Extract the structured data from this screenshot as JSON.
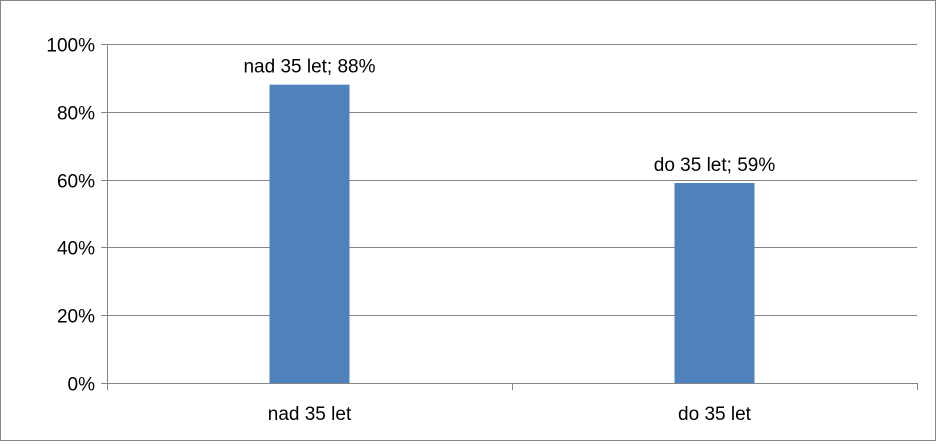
{
  "chart_data": {
    "type": "bar",
    "categories": [
      "nad 35 let",
      "do 35 let"
    ],
    "values": [
      88,
      59
    ],
    "data_labels": [
      "nad 35 let; 88%",
      "do 35 let; 59%"
    ],
    "ylim": [
      0,
      100
    ],
    "yticks": [
      0,
      20,
      40,
      60,
      80,
      100
    ],
    "ytick_labels": [
      "0%",
      "20%",
      "40%",
      "60%",
      "80%",
      "100%"
    ],
    "grid": true,
    "legend": "none",
    "bar_color": "#4F81BD",
    "title": "",
    "xlabel": "",
    "ylabel": ""
  }
}
